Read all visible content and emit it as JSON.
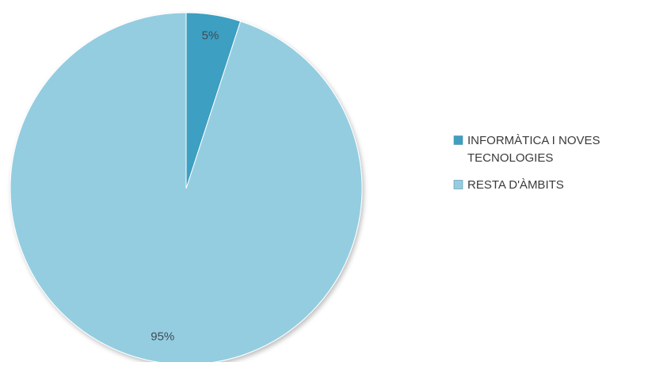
{
  "chart_data": {
    "type": "pie",
    "title": "",
    "slices": [
      {
        "label_lines": [
          "INFORMÀTICA I NOVES",
          "TECNOLOGIES"
        ],
        "value": 5,
        "display": "5%",
        "color": "#3d9fc1"
      },
      {
        "label_lines": [
          "RESTA D'ÀMBITS"
        ],
        "value": 95,
        "display": "95%",
        "color": "#94cde0"
      }
    ],
    "start_angle_deg": 0,
    "direction": "clockwise",
    "legend_position": "right"
  }
}
